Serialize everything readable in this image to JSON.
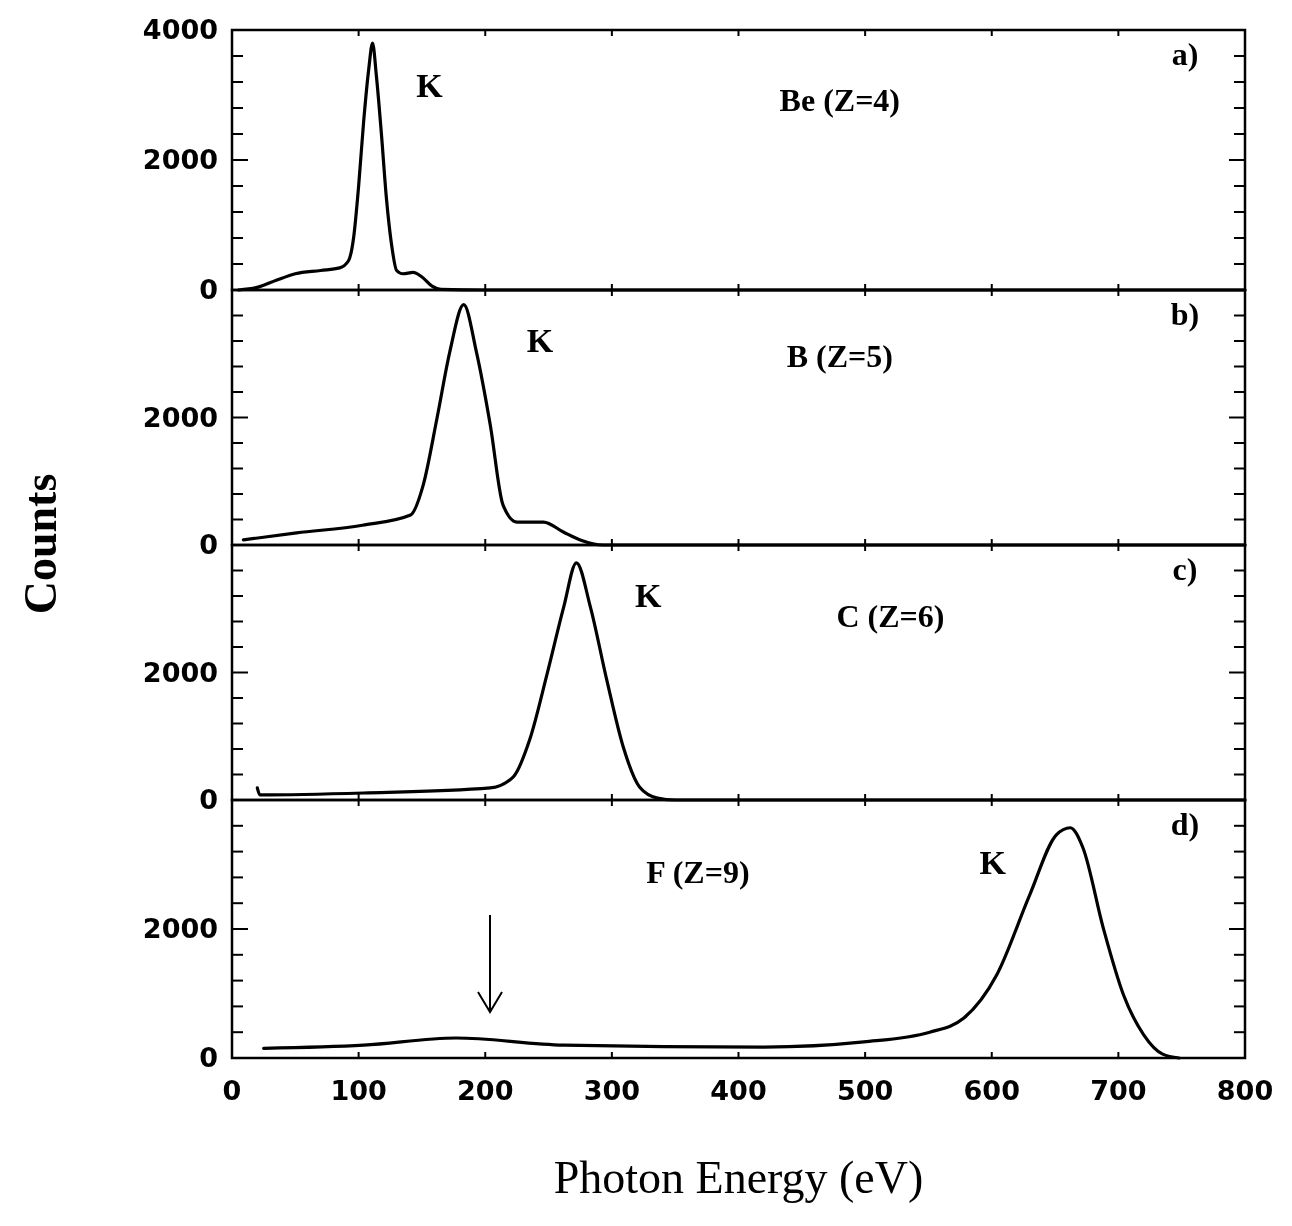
{
  "chart_data": [
    {
      "type": "line",
      "title": "Be (Z=4)",
      "ylabel": "Counts",
      "xlim": [
        0,
        800
      ],
      "xticks": [
        0,
        100,
        200,
        300,
        400,
        500,
        600,
        700,
        800
      ],
      "ylim": [
        0,
        4000
      ],
      "yticks": [
        0,
        {
          "value": 400,
          "label": null
        },
        {
          "value": 800,
          "label": null
        },
        {
          "value": 1200,
          "label": null
        },
        {
          "value": 1600,
          "label": null
        },
        2000,
        {
          "value": 2400,
          "label": null
        },
        {
          "value": 2800,
          "label": null
        },
        {
          "value": 3200,
          "label": null
        },
        {
          "value": 3600,
          "label": null
        },
        4000
      ],
      "tick_labels": "y",
      "annotations": [
        "K",
        "a)"
      ],
      "series": [
        {
          "color": "#000000",
          "x": [
            5,
            20,
            35,
            50,
            70,
            85,
            92,
            96,
            100,
            104,
            108,
            111,
            114,
            118,
            122,
            126,
            130,
            135,
            143,
            150,
            158,
            165,
            200,
            400,
            800
          ],
          "values": [
            0,
            40,
            150,
            250,
            300,
            340,
            450,
            800,
            1600,
            2600,
            3400,
            3800,
            3300,
            2400,
            1400,
            700,
            300,
            250,
            270,
            200,
            60,
            10,
            0,
            0,
            0
          ]
        }
      ]
    },
    {
      "type": "line",
      "title": "B (Z=5)",
      "xlim": [
        0,
        800
      ],
      "xticks": [
        0,
        100,
        200,
        300,
        400,
        500,
        600,
        700,
        800
      ],
      "ylim": [
        0,
        4000
      ],
      "yticks": [
        0,
        {
          "value": 400,
          "label": null
        },
        {
          "value": 800,
          "label": null
        },
        {
          "value": 1200,
          "label": null
        },
        {
          "value": 1600,
          "label": null
        },
        2000,
        {
          "value": 2400,
          "label": null
        },
        {
          "value": 2800,
          "label": null
        },
        {
          "value": 3200,
          "label": null
        },
        {
          "value": 3600,
          "label": null
        },
        {
          "value": 4000,
          "label": null
        }
      ],
      "tick_labels": "y",
      "annotations": [
        "K",
        "b)"
      ],
      "series": [
        {
          "color": "#000000",
          "x": [
            9,
            51,
            103,
            141,
            151,
            162,
            172,
            183,
            193,
            204,
            214,
            225,
            246,
            262,
            275,
            293,
            400,
            800
          ],
          "values": [
            80,
            190,
            310,
            470,
            940,
            2000,
            3030,
            3770,
            3030,
            1880,
            630,
            360,
            360,
            200,
            80,
            0,
            0,
            0
          ]
        }
      ]
    },
    {
      "type": "line",
      "title": "C (Z=6)",
      "xlim": [
        0,
        800
      ],
      "xticks": [
        0,
        100,
        200,
        300,
        400,
        500,
        600,
        700,
        800
      ],
      "ylim": [
        0,
        4000
      ],
      "yticks": [
        0,
        {
          "value": 400,
          "label": null
        },
        {
          "value": 800,
          "label": null
        },
        {
          "value": 1200,
          "label": null
        },
        {
          "value": 1600,
          "label": null
        },
        2000,
        {
          "value": 2400,
          "label": null
        },
        {
          "value": 2800,
          "label": null
        },
        {
          "value": 3200,
          "label": null
        },
        {
          "value": 3600,
          "label": null
        },
        {
          "value": 4000,
          "label": null
        }
      ],
      "tick_labels": "y",
      "annotations": [
        "K",
        "c)"
      ],
      "series": [
        {
          "color": "#000000",
          "x": [
            20,
            22,
            104,
            204,
            222,
            235,
            249,
            262,
            272,
            283,
            296,
            309,
            322,
            336,
            350,
            500,
            800
          ],
          "values": [
            190,
            80,
            110,
            190,
            360,
            940,
            1990,
            3030,
            3720,
            3030,
            1880,
            830,
            200,
            30,
            0,
            0,
            0
          ]
        }
      ]
    },
    {
      "type": "line",
      "title": "F (Z=9)",
      "xlabel": "Photon Energy (eV)",
      "xlim": [
        0,
        800
      ],
      "xticks": [
        0,
        100,
        200,
        300,
        400,
        500,
        600,
        700,
        800
      ],
      "ylim": [
        0,
        4000
      ],
      "yticks": [
        0,
        {
          "value": 400,
          "label": null
        },
        {
          "value": 800,
          "label": null
        },
        {
          "value": 1200,
          "label": null
        },
        {
          "value": 1600,
          "label": null
        },
        2000,
        {
          "value": 2400,
          "label": null
        },
        {
          "value": 2800,
          "label": null
        },
        {
          "value": 3200,
          "label": null
        },
        {
          "value": 3600,
          "label": null
        },
        {
          "value": 4000,
          "label": null
        }
      ],
      "annotations": [
        "K",
        "d)"
      ],
      "series": [
        {
          "color": "#000000",
          "x": [
            25,
            104,
            177,
            262,
            420,
            499,
            551,
            578,
            604,
            630,
            651,
            662,
            672,
            688,
            704,
            720,
            735,
            748
          ],
          "values": [
            150,
            200,
            310,
            200,
            170,
            250,
            400,
            620,
            1290,
            2530,
            3460,
            3570,
            3260,
            2020,
            980,
            360,
            60,
            0
          ]
        }
      ]
    }
  ]
}
